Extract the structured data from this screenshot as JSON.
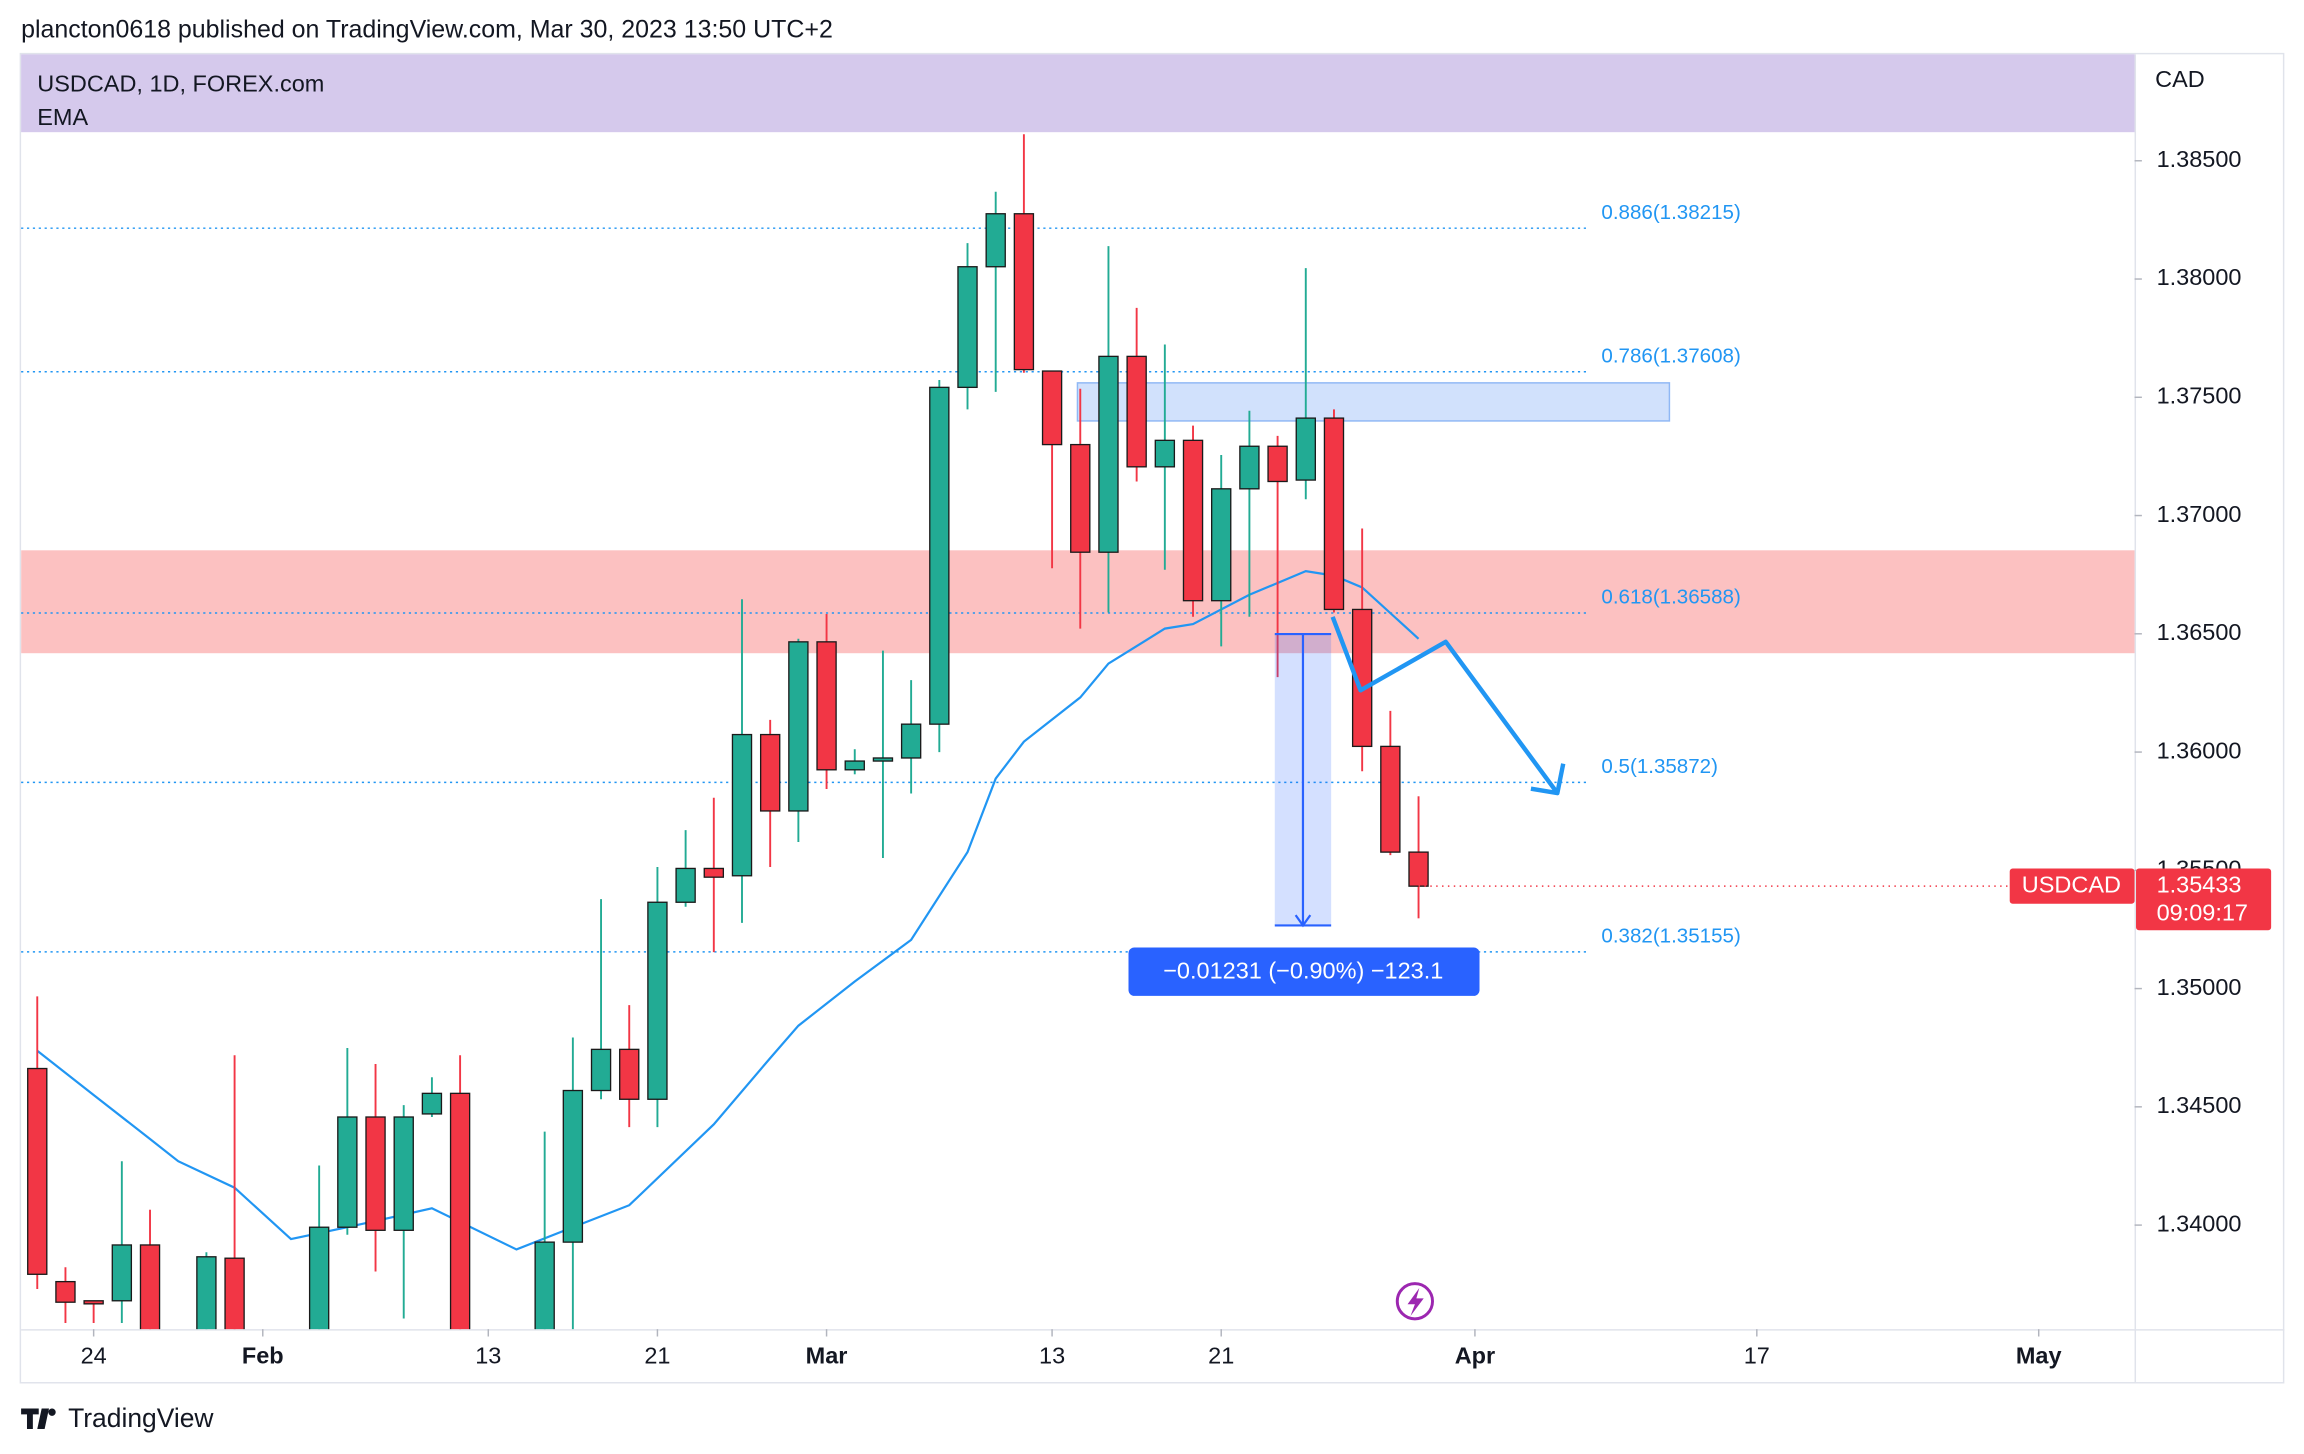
{
  "header": {
    "text": "plancton0618 published on TradingView.com, Mar 30, 2023 13:50 UTC+2"
  },
  "footer": {
    "brand": "TradingView"
  },
  "chart_data": {
    "type": "candlestick",
    "title": "USDCAD, 1D, FOREX.com",
    "indicator": "EMA",
    "y_axis_label": "CAD",
    "x": [
      0,
      1,
      2,
      3,
      4,
      6,
      7,
      10,
      11,
      12,
      13,
      14,
      15,
      18,
      19,
      20,
      21,
      22,
      23,
      24,
      25,
      26,
      27,
      28,
      29,
      30,
      31,
      32,
      33,
      34,
      35,
      36,
      37,
      38,
      39,
      40,
      41,
      42,
      43,
      44,
      45,
      46,
      47,
      48,
      49
    ],
    "open": [
      1.34662,
      1.33761,
      1.3368,
      1.3368,
      1.33916,
      1.33555,
      1.3386,
      1.33555,
      1.33991,
      1.34457,
      1.33978,
      1.3447,
      1.34557,
      1.33555,
      1.33928,
      1.34569,
      1.34743,
      1.34532,
      1.35365,
      1.35508,
      1.35477,
      1.36074,
      1.35751,
      1.36466,
      1.35925,
      1.35962,
      1.35975,
      1.36118,
      1.37542,
      1.38052,
      1.38276,
      1.37611,
      1.373,
      1.36845,
      1.37673,
      1.37206,
      1.37318,
      1.3664,
      1.37113,
      1.37293,
      1.3715,
      1.37412,
      1.36603,
      1.36024,
      1.35577
    ],
    "high": [
      1.34967,
      1.33822,
      1.3368,
      1.3427,
      1.34065,
      1.33885,
      1.34718,
      1.34252,
      1.34749,
      1.34681,
      1.34507,
      1.34625,
      1.34718,
      1.34395,
      1.34793,
      1.35378,
      1.3493,
      1.35514,
      1.3567,
      1.35807,
      1.36646,
      1.36136,
      1.36479,
      1.36584,
      1.36012,
      1.36429,
      1.36304,
      1.37573,
      1.38152,
      1.38369,
      1.38612,
      1.37611,
      1.37536,
      1.38139,
      1.37878,
      1.37723,
      1.3738,
      1.37256,
      1.37443,
      1.37337,
      1.38046,
      1.37449,
      1.36945,
      1.36174,
      1.35813
    ],
    "low": [
      1.3373,
      1.33586,
      1.33586,
      1.33586,
      1.33555,
      1.33555,
      1.33555,
      1.33555,
      1.33959,
      1.33804,
      1.33605,
      1.34457,
      1.33555,
      1.33555,
      1.33555,
      1.34532,
      1.34414,
      1.34414,
      1.35346,
      1.35154,
      1.35278,
      1.35514,
      1.3562,
      1.35844,
      1.35906,
      1.35552,
      1.35825,
      1.36,
      1.37449,
      1.37523,
      1.37604,
      1.36777,
      1.36522,
      1.3659,
      1.37144,
      1.36771,
      1.36572,
      1.36447,
      1.36572,
      1.36317,
      1.37069,
      1.3659,
      1.35919,
      1.35564,
      1.35297
    ],
    "close": [
      1.33792,
      1.33674,
      1.33667,
      1.33916,
      1.33555,
      1.33866,
      1.33555,
      1.33991,
      1.34457,
      1.33978,
      1.34457,
      1.34557,
      1.33555,
      1.33928,
      1.34569,
      1.34743,
      1.34532,
      1.35365,
      1.35508,
      1.35471,
      1.36074,
      1.35751,
      1.36466,
      1.35925,
      1.35962,
      1.35975,
      1.36118,
      1.37542,
      1.38052,
      1.38276,
      1.37617,
      1.373,
      1.36845,
      1.37673,
      1.37206,
      1.37318,
      1.3664,
      1.37113,
      1.37293,
      1.37144,
      1.37412,
      1.36603,
      1.36024,
      1.35577,
      1.35433
    ],
    "up_color": "#22ab94",
    "down_color": "#f23645",
    "series": [
      {
        "name": "EMA",
        "color": "#2196f3",
        "x": [
          0,
          2,
          4,
          5,
          7,
          9,
          11,
          14,
          17,
          19,
          21,
          24,
          26,
          27,
          29,
          31,
          33,
          34,
          35,
          37,
          38,
          40,
          41,
          43,
          45,
          46,
          47,
          49
        ],
        "values": [
          1.34737,
          1.3455,
          1.34364,
          1.3427,
          1.34158,
          1.33941,
          1.33991,
          1.34071,
          1.33897,
          1.33991,
          1.34084,
          1.34426,
          1.34706,
          1.34843,
          1.3503,
          1.35206,
          1.35577,
          1.35888,
          1.36044,
          1.36231,
          1.36374,
          1.36522,
          1.36541,
          1.36665,
          1.36765,
          1.36746,
          1.36696,
          1.36479
        ]
      }
    ],
    "xlim": [
      -0.573,
      74.4
    ],
    "xticks": [
      {
        "value": 2,
        "label": "24"
      },
      {
        "value": 8,
        "label": "Feb"
      },
      {
        "value": 16,
        "label": "13"
      },
      {
        "value": 22,
        "label": "21"
      },
      {
        "value": 28,
        "label": "Mar"
      },
      {
        "value": 36,
        "label": "13"
      },
      {
        "value": 42,
        "label": "21"
      },
      {
        "value": 51,
        "label": "Apr"
      },
      {
        "value": 61,
        "label": "17"
      },
      {
        "value": 71,
        "label": "May"
      }
    ],
    "ylim": [
      1.3356,
      1.3895
    ],
    "yticks": [
      {
        "value": 1.34,
        "label": "1.34000"
      },
      {
        "value": 1.345,
        "label": "1.34500"
      },
      {
        "value": 1.35,
        "label": "1.35000"
      },
      {
        "value": 1.355,
        "label": "1.35500"
      },
      {
        "value": 1.36,
        "label": "1.36000"
      },
      {
        "value": 1.365,
        "label": "1.36500"
      },
      {
        "value": 1.37,
        "label": "1.37000"
      },
      {
        "value": 1.375,
        "label": "1.37500"
      },
      {
        "value": 1.38,
        "label": "1.38000"
      },
      {
        "value": 1.385,
        "label": "1.38500"
      }
    ],
    "fib_levels": [
      {
        "value": 1.38215,
        "label": "0.886(1.38215)"
      },
      {
        "value": 1.37608,
        "label": "0.786(1.37608)"
      },
      {
        "value": 1.36588,
        "label": "0.618(1.36588)"
      },
      {
        "value": 1.35872,
        "label": "0.5(1.35872)"
      },
      {
        "value": 1.35155,
        "label": "0.382(1.35155)"
      }
    ],
    "fib_color": "#2196f3",
    "zones": [
      {
        "low": 1.36418,
        "high": 1.36853,
        "x0": -0.573,
        "x1": 74.4,
        "color": "#fbb6b6"
      },
      {
        "low": 1.374,
        "high": 1.37561,
        "x0": 36.9,
        "x1": 57.9,
        "color": "#c9dcfb"
      }
    ],
    "measure": {
      "label": "−0.01231 (−0.90%) −123.1",
      "from": 1.36499,
      "to": 1.35267,
      "x0": 43.9,
      "x1": 45.9,
      "color": "#2962ff"
    },
    "price_tag": {
      "symbol": "USDCAD",
      "countdown": "09:09:17"
    }
  }
}
